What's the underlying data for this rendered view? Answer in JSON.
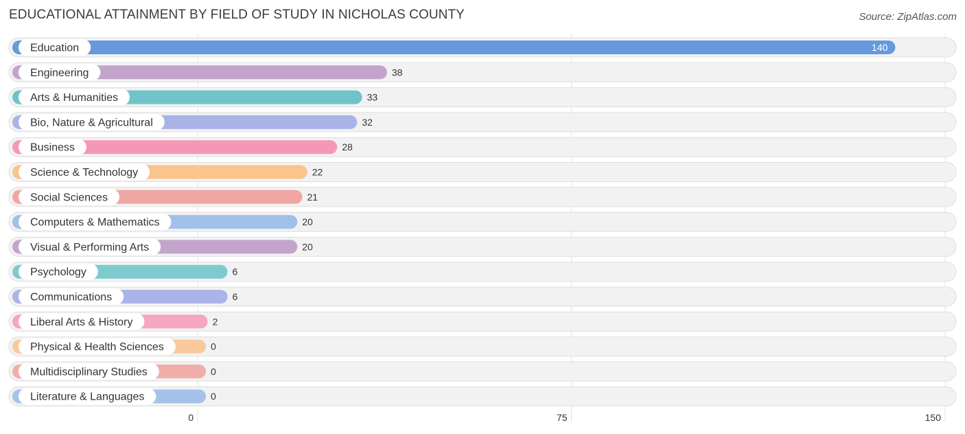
{
  "title": "EDUCATIONAL ATTAINMENT BY FIELD OF STUDY IN NICHOLAS COUNTY",
  "source": "Source: ZipAtlas.com",
  "chart_data": {
    "type": "bar",
    "orientation": "horizontal",
    "title": "EDUCATIONAL ATTAINMENT BY FIELD OF STUDY IN NICHOLAS COUNTY",
    "xlim": [
      0,
      150
    ],
    "xticks": [
      0,
      75,
      150
    ],
    "grid": true,
    "categories": [
      "Education",
      "Engineering",
      "Arts & Humanities",
      "Bio, Nature & Agricultural",
      "Business",
      "Science & Technology",
      "Social Sciences",
      "Computers & Mathematics",
      "Visual & Performing Arts",
      "Psychology",
      "Communications",
      "Liberal Arts & History",
      "Physical & Health Sciences",
      "Multidisciplinary Studies",
      "Literature & Languages"
    ],
    "values": [
      140,
      38,
      33,
      32,
      28,
      22,
      21,
      20,
      20,
      6,
      6,
      2,
      0,
      0,
      0
    ],
    "colors": [
      "#6699dd",
      "#c3a4cb",
      "#6ec4c9",
      "#a9b3e8",
      "#f598b6",
      "#fac48d",
      "#f0a6a3",
      "#9fc0e8",
      "#c3a4cb",
      "#7dcbcf",
      "#aab4e8",
      "#f5a6c0",
      "#fac99b",
      "#f0aeab",
      "#a6c2ea"
    ]
  }
}
